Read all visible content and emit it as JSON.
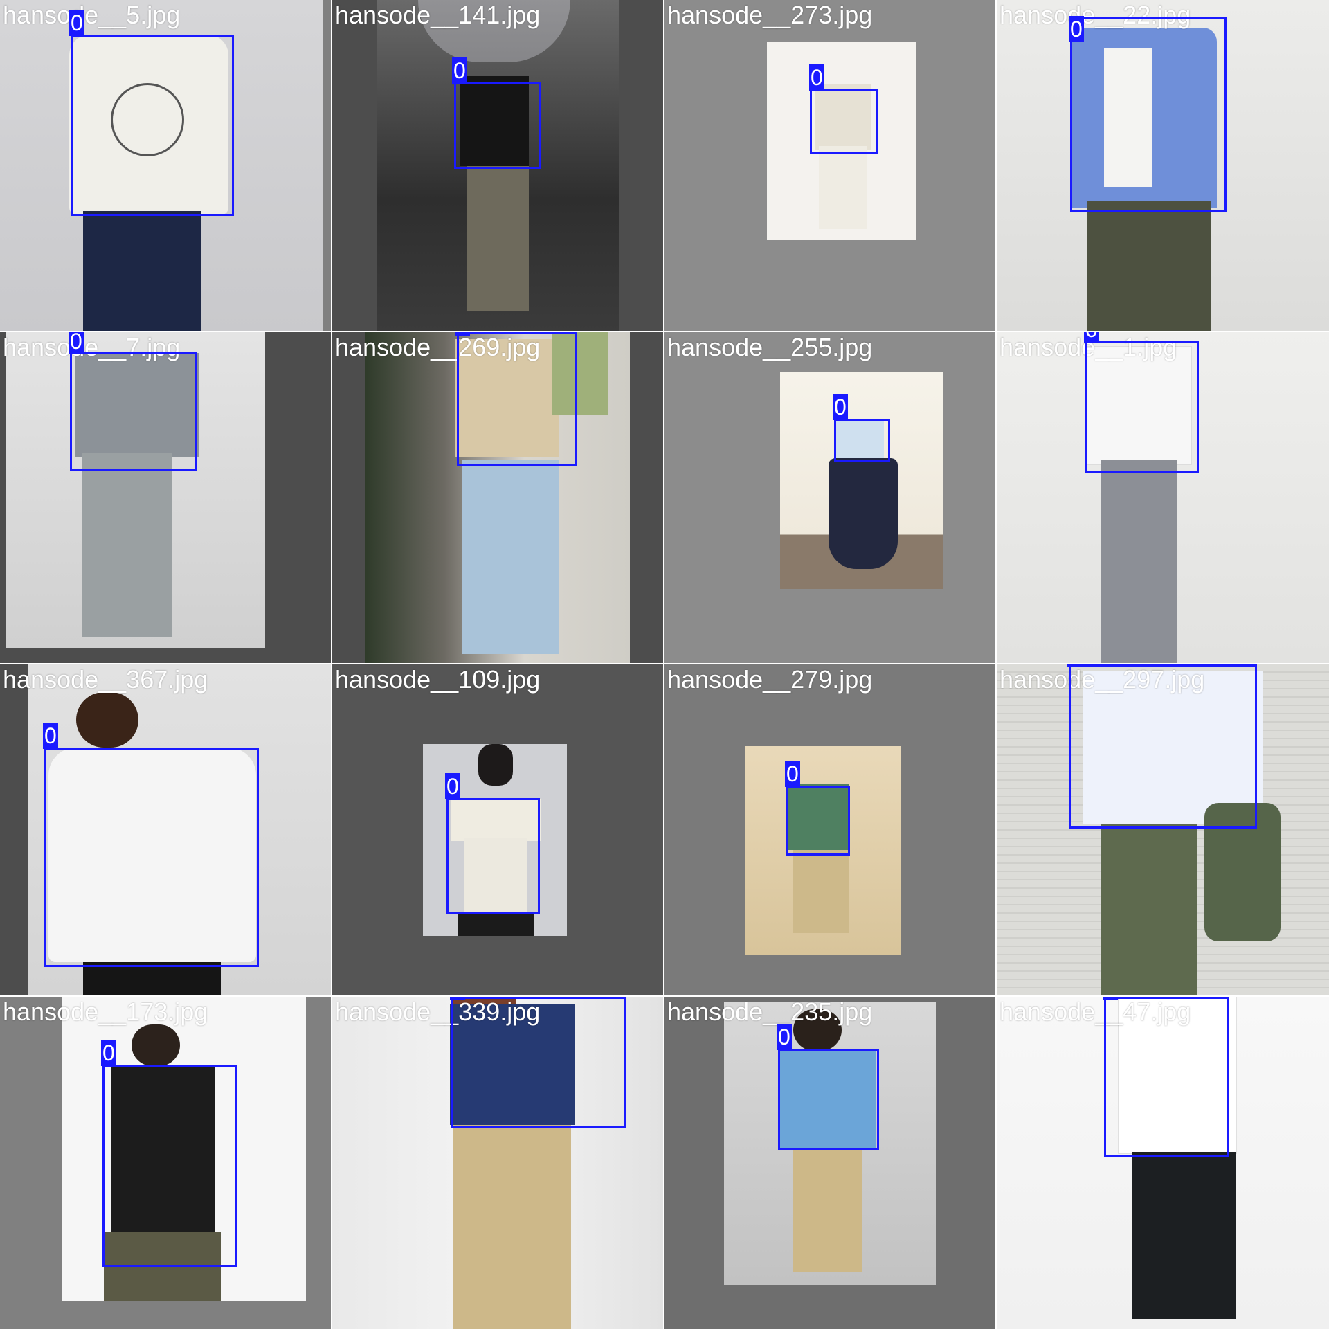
{
  "colors": {
    "box": "#1a1aff",
    "label_text": "#ffffff",
    "tile_bg_gray": "#808080"
  },
  "tiles": [
    {
      "filename": "hansode__5.jpg",
      "cls": "0",
      "photo_desc": "white back-print shirt, navy pants"
    },
    {
      "filename": "hansode__141.jpg",
      "cls": "0",
      "photo_desc": "umbrella, black shirt, khaki cargo"
    },
    {
      "filename": "hansode__273.jpg",
      "cls": "0",
      "photo_desc": "cream top, white pants"
    },
    {
      "filename": "hansode__22.jpg",
      "cls": "0",
      "photo_desc": "blue open shirt"
    },
    {
      "filename": "hansode__7.jpg",
      "cls": "0",
      "photo_desc": "gray polo, wide jeans"
    },
    {
      "filename": "hansode__269.jpg",
      "cls": "0",
      "photo_desc": "beige tee, light jeans"
    },
    {
      "filename": "hansode__255.jpg",
      "cls": "0",
      "photo_desc": "white tee, navy skirt"
    },
    {
      "filename": "hansode__1.jpg",
      "cls": "0",
      "photo_desc": "white dress shirt, gray slacks"
    },
    {
      "filename": "hansode__367.jpg",
      "cls": "0",
      "photo_desc": "white oversized tee"
    },
    {
      "filename": "hansode__109.jpg",
      "cls": "0",
      "photo_desc": "off-shoulder top"
    },
    {
      "filename": "hansode__279.jpg",
      "cls": "0",
      "photo_desc": "green tee, beige pants"
    },
    {
      "filename": "hansode__297.jpg",
      "cls": "0",
      "photo_desc": "white shirt, olive pants"
    },
    {
      "filename": "hansode__173.jpg",
      "cls": "0",
      "photo_desc": "black tee"
    },
    {
      "filename": "hansode__339.jpg",
      "cls": "0",
      "photo_desc": "navy shirt, beige pants"
    },
    {
      "filename": "hansode__235.jpg",
      "cls": "0",
      "photo_desc": "blue shirt, beige pants"
    },
    {
      "filename": "hansode__47.jpg",
      "cls": "0",
      "photo_desc": "white print tee, black pants"
    }
  ]
}
